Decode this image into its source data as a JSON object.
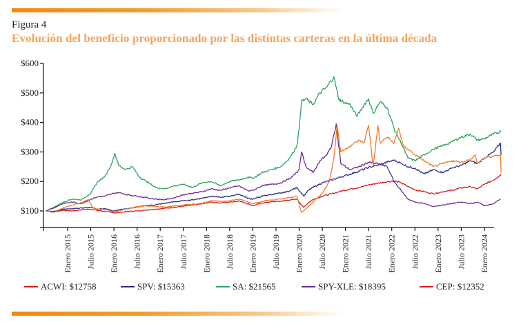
{
  "figure": {
    "label": "Figura 4",
    "title": "Evolución del beneficio proporcionado por las distintas carteras en la última década"
  },
  "colors": {
    "accent_bar": "#ef8a0c",
    "title": "#f4a25a"
  },
  "chart_data": {
    "type": "line",
    "title": "Evolución del beneficio proporcionado por las distintas carteras en la última década",
    "xlabel": "",
    "ylabel": "",
    "ylim": [
      44,
      600
    ],
    "xlim": [
      2014.48,
      2024.5
    ],
    "grid": false,
    "legend_position": "bottom",
    "yticks": [
      {
        "value": 100,
        "label": "$100"
      },
      {
        "value": 200,
        "label": "$200"
      },
      {
        "value": 300,
        "label": "$300"
      },
      {
        "value": 400,
        "label": "$400"
      },
      {
        "value": 500,
        "label": "$500"
      },
      {
        "value": 600,
        "label": "$600"
      }
    ],
    "xticks": [
      {
        "value": 2015.0,
        "label": "Enero 2015"
      },
      {
        "value": 2015.5,
        "label": "Julio 2015"
      },
      {
        "value": 2016.0,
        "label": "Enero 2016"
      },
      {
        "value": 2016.5,
        "label": "Julio 2016"
      },
      {
        "value": 2017.0,
        "label": "Enero 2017"
      },
      {
        "value": 2017.5,
        "label": "Julio 2017"
      },
      {
        "value": 2018.0,
        "label": "Enero 2018"
      },
      {
        "value": 2018.5,
        "label": "Julio 2018"
      },
      {
        "value": 2019.0,
        "label": "Enero 2019"
      },
      {
        "value": 2019.5,
        "label": "Julio 2019"
      },
      {
        "value": 2020.0,
        "label": "Enero 2020"
      },
      {
        "value": 2020.5,
        "label": "Julio 2020"
      },
      {
        "value": 2021.0,
        "label": "Enero 2021"
      },
      {
        "value": 2021.5,
        "label": "Julio 2021"
      },
      {
        "value": 2022.0,
        "label": "Enero 2022"
      },
      {
        "value": 2022.5,
        "label": "Julio 2022"
      },
      {
        "value": 2023.0,
        "label": "Enero 2023"
      },
      {
        "value": 2023.5,
        "label": "Julio 2023"
      },
      {
        "value": 2024.0,
        "label": "Enero 2024"
      }
    ],
    "series": [
      {
        "name": "ACWI",
        "legend": "ACWI: $12758",
        "color": "#d7191c",
        "x": [
          2014.53,
          2014.7,
          2014.9,
          2015.1,
          2015.3,
          2015.5,
          2015.65,
          2015.8,
          2016.0,
          2016.1,
          2016.3,
          2016.5,
          2016.7,
          2016.9,
          2017.1,
          2017.3,
          2017.5,
          2017.7,
          2017.9,
          2018.1,
          2018.3,
          2018.5,
          2018.7,
          2018.9,
          2019.0,
          2019.2,
          2019.4,
          2019.6,
          2019.8,
          2019.95,
          2020.1,
          2020.2,
          2020.3,
          2020.5,
          2020.7,
          2020.9,
          2021.1,
          2021.3,
          2021.5,
          2021.7,
          2021.9,
          2022.05,
          2022.2,
          2022.35,
          2022.5,
          2022.7,
          2022.9,
          2023.1,
          2023.3,
          2023.5,
          2023.7,
          2023.85,
          2024.0,
          2024.2,
          2024.35,
          2024.36
        ],
        "y": [
          100,
          97,
          102,
          100,
          104,
          106,
          101,
          99,
          93,
          95,
          98,
          100,
          103,
          106,
          109,
          112,
          116,
          120,
          124,
          130,
          127,
          130,
          134,
          124,
          118,
          127,
          131,
          133,
          137,
          140,
          112,
          128,
          138,
          150,
          158,
          167,
          174,
          180,
          188,
          194,
          199,
          202,
          195,
          183,
          172,
          165,
          158,
          165,
          170,
          178,
          182,
          175,
          190,
          205,
          222,
          225
        ]
      },
      {
        "name": "SPV",
        "legend": "SPV: $15363",
        "color": "#2b2a8c",
        "x": [
          2014.53,
          2014.7,
          2014.9,
          2015.1,
          2015.3,
          2015.5,
          2015.65,
          2015.8,
          2016.0,
          2016.1,
          2016.3,
          2016.5,
          2016.7,
          2016.9,
          2017.1,
          2017.3,
          2017.5,
          2017.7,
          2017.9,
          2018.1,
          2018.3,
          2018.5,
          2018.7,
          2018.9,
          2019.0,
          2019.2,
          2019.4,
          2019.6,
          2019.8,
          2019.95,
          2020.1,
          2020.2,
          2020.3,
          2020.5,
          2020.7,
          2020.9,
          2021.1,
          2021.3,
          2021.5,
          2021.7,
          2021.9,
          2022.05,
          2022.2,
          2022.35,
          2022.5,
          2022.7,
          2022.9,
          2023.1,
          2023.3,
          2023.5,
          2023.7,
          2023.85,
          2024.0,
          2024.2,
          2024.35,
          2024.36
        ],
        "y": [
          100,
          98,
          106,
          107,
          110,
          112,
          106,
          108,
          100,
          104,
          108,
          113,
          118,
          121,
          126,
          131,
          134,
          138,
          143,
          150,
          146,
          150,
          157,
          143,
          140,
          150,
          156,
          160,
          168,
          180,
          150,
          170,
          180,
          195,
          205,
          215,
          225,
          235,
          248,
          255,
          265,
          272,
          262,
          250,
          245,
          225,
          240,
          230,
          245,
          255,
          270,
          260,
          280,
          300,
          330,
          290
        ]
      },
      {
        "name": "SA",
        "legend": "SA: $21565",
        "color": "#2aa35c",
        "x": [
          2014.53,
          2014.7,
          2014.9,
          2015.1,
          2015.3,
          2015.5,
          2015.65,
          2015.8,
          2015.95,
          2016.02,
          2016.1,
          2016.25,
          2016.4,
          2016.55,
          2016.7,
          2016.9,
          2017.1,
          2017.3,
          2017.5,
          2017.7,
          2017.9,
          2018.1,
          2018.3,
          2018.5,
          2018.7,
          2018.9,
          2019.0,
          2019.2,
          2019.4,
          2019.6,
          2019.8,
          2019.95,
          2020.0,
          2020.05,
          2020.15,
          2020.3,
          2020.45,
          2020.6,
          2020.75,
          2020.85,
          2020.95,
          2021.1,
          2021.25,
          2021.4,
          2021.5,
          2021.6,
          2021.75,
          2021.9,
          2022.05,
          2022.2,
          2022.35,
          2022.5,
          2022.7,
          2022.9,
          2023.1,
          2023.3,
          2023.5,
          2023.7,
          2023.85,
          2024.0,
          2024.2,
          2024.36
        ],
        "y": [
          100,
          112,
          130,
          140,
          138,
          160,
          200,
          215,
          260,
          295,
          255,
          240,
          250,
          215,
          200,
          180,
          175,
          185,
          190,
          180,
          195,
          200,
          185,
          200,
          205,
          215,
          210,
          230,
          240,
          250,
          280,
          320,
          380,
          470,
          480,
          460,
          500,
          520,
          555,
          480,
          470,
          460,
          420,
          460,
          480,
          430,
          470,
          450,
          380,
          330,
          280,
          270,
          290,
          310,
          320,
          335,
          350,
          360,
          340,
          345,
          360,
          370
        ]
      },
      {
        "name": "SPY-XLE",
        "legend": "SPY-XLE: $18395",
        "color": "#6a2c91",
        "x": [
          2014.53,
          2014.7,
          2014.9,
          2015.1,
          2015.3,
          2015.5,
          2015.65,
          2015.8,
          2016.0,
          2016.1,
          2016.3,
          2016.5,
          2016.7,
          2016.9,
          2017.1,
          2017.3,
          2017.5,
          2017.7,
          2017.9,
          2018.1,
          2018.3,
          2018.5,
          2018.7,
          2018.9,
          2019.0,
          2019.2,
          2019.4,
          2019.6,
          2019.8,
          2019.95,
          2020.0,
          2020.05,
          2020.15,
          2020.3,
          2020.45,
          2020.6,
          2020.7,
          2020.8,
          2020.9,
          2021.1,
          2021.3,
          2021.5,
          2021.7,
          2021.9,
          2022.05,
          2022.2,
          2022.35,
          2022.5,
          2022.7,
          2022.9,
          2023.1,
          2023.3,
          2023.5,
          2023.7,
          2023.85,
          2024.0,
          2024.2,
          2024.35
        ],
        "y": [
          100,
          110,
          125,
          130,
          125,
          140,
          148,
          150,
          160,
          162,
          155,
          150,
          145,
          140,
          138,
          145,
          155,
          160,
          165,
          175,
          170,
          178,
          185,
          168,
          170,
          185,
          190,
          195,
          210,
          230,
          240,
          300,
          250,
          230,
          270,
          290,
          320,
          395,
          260,
          240,
          250,
          265,
          260,
          250,
          200,
          170,
          140,
          130,
          125,
          115,
          120,
          125,
          130,
          125,
          130,
          118,
          125,
          140
        ]
      },
      {
        "name": "CEP",
        "legend": "CEP: $12352",
        "legend_color": "#d7191c",
        "color": "#f07b2a",
        "x": [
          2014.53,
          2014.7,
          2014.9,
          2015.1,
          2015.3,
          2015.45,
          2015.55,
          2015.7,
          2015.85,
          2016.0,
          2016.1,
          2016.3,
          2016.5,
          2016.7,
          2016.9,
          2017.1,
          2017.3,
          2017.5,
          2017.7,
          2017.9,
          2018.1,
          2018.3,
          2018.5,
          2018.7,
          2018.9,
          2019.0,
          2019.2,
          2019.4,
          2019.6,
          2019.8,
          2019.95,
          2020.05,
          2020.1,
          2020.3,
          2020.5,
          2020.65,
          2020.75,
          2020.82,
          2020.9,
          2021.1,
          2021.3,
          2021.4,
          2021.5,
          2021.6,
          2021.7,
          2021.75,
          2021.9,
          2022.05,
          2022.15,
          2022.25,
          2022.35,
          2022.5,
          2022.7,
          2022.9,
          2023.1,
          2023.3,
          2023.5,
          2023.7,
          2023.8,
          2023.85,
          2024.0,
          2024.2,
          2024.35,
          2024.36
        ],
        "y": [
          100,
          95,
          110,
          120,
          128,
          138,
          110,
          105,
          104,
          95,
          100,
          108,
          115,
          117,
          115,
          113,
          117,
          120,
          123,
          126,
          135,
          132,
          135,
          140,
          130,
          125,
          133,
          137,
          140,
          145,
          150,
          95,
          100,
          130,
          160,
          200,
          280,
          390,
          300,
          320,
          340,
          330,
          390,
          250,
          390,
          330,
          350,
          330,
          380,
          320,
          310,
          290,
          270,
          250,
          260,
          270,
          265,
          275,
          290,
          260,
          280,
          285,
          290,
          230
        ]
      }
    ]
  }
}
